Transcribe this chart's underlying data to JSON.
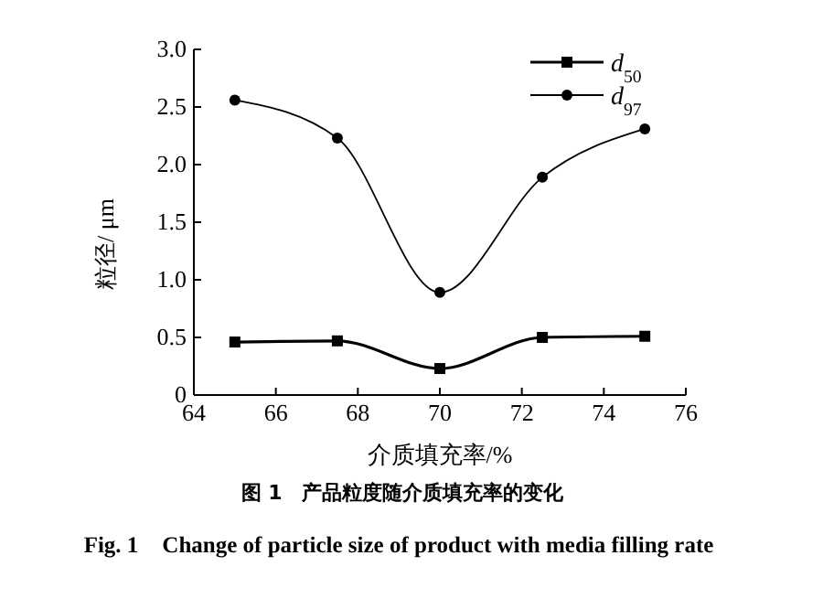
{
  "chart_data": {
    "type": "line",
    "title": "图 1　产品粒度随介质填充率的变化",
    "subtitle": "Fig. 1　Change of particle size of product with media filling rate",
    "xlabel": "介质填充率/%",
    "ylabel": "粒径/ μm",
    "x": [
      65,
      67.5,
      70,
      72.5,
      75
    ],
    "series": [
      {
        "name": "d$_{50}$",
        "color": "#000000",
        "marker": "square",
        "values": [
          0.46,
          0.47,
          0.23,
          0.5,
          0.51
        ]
      },
      {
        "name": "d$_{97}$",
        "color": "#000000",
        "marker": "circle",
        "values": [
          2.56,
          2.23,
          0.89,
          1.89,
          2.31
        ]
      }
    ],
    "xlim": [
      64,
      76
    ],
    "xticks": [
      64,
      66,
      68,
      70,
      72,
      74,
      76
    ],
    "ylim": [
      0,
      3
    ],
    "yticks": [
      0,
      0.5,
      {
        "value": 1,
        "label": "1.0"
      },
      1.5,
      {
        "value": 2,
        "label": "2.0"
      },
      2.5,
      {
        "value": 3,
        "label": "3.0"
      }
    ],
    "grid": false,
    "legend": "top right"
  }
}
